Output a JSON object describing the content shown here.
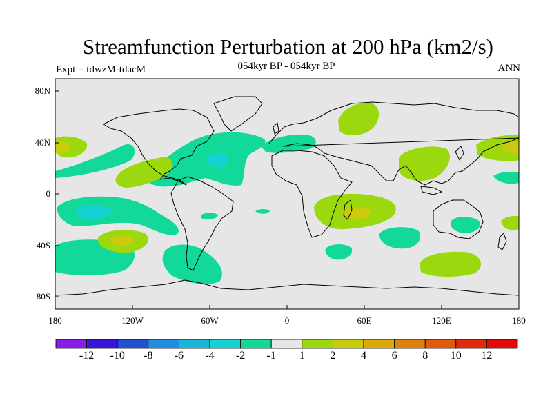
{
  "title": "Streamfunction Perturbation at 200 hPa (km2/s)",
  "experiment": "Expt = tdwzM-tdacM",
  "period": "054kyr BP - 054kyr BP",
  "season": "ANN",
  "lat_labels": [
    "80N",
    "40N",
    "0",
    "40S",
    "80S"
  ],
  "lon_labels": [
    "180",
    "120W",
    "60W",
    "0",
    "60E",
    "120E",
    "180"
  ],
  "colorbar": {
    "labels": [
      "-12",
      "-10",
      "-8",
      "-6",
      "-4",
      "-2",
      "-1",
      "1",
      "2",
      "4",
      "6",
      "8",
      "10",
      "12"
    ],
    "colors": [
      "#8B1CE8",
      "#3A14D8",
      "#1E50D0",
      "#1E8FE0",
      "#18B6DA",
      "#14D2D2",
      "#12D89A",
      "#E6E6E6",
      "#9BD80E",
      "#C8CC0A",
      "#DCA80A",
      "#E0820A",
      "#E05A0A",
      "#E02A0A",
      "#E00A0A"
    ]
  },
  "map": {
    "ocean_color": "#E6E6E6",
    "features": [
      {
        "name": "n-atlantic-low",
        "level": -2
      },
      {
        "name": "n-atlantic-core",
        "level": -4
      },
      {
        "name": "s-pacific-low",
        "level": -2
      },
      {
        "name": "s-pacific-core",
        "level": -4
      },
      {
        "name": "arctic-high",
        "level": 2
      },
      {
        "name": "s-indian-high",
        "level": 2
      },
      {
        "name": "s-indian-core",
        "level": 4
      },
      {
        "name": "s-pacific-high",
        "level": 2
      },
      {
        "name": "s-pacific-high-core",
        "level": 4
      },
      {
        "name": "w-pacific-high",
        "level": 2
      },
      {
        "name": "w-pacific-high-core",
        "level": 4
      },
      {
        "name": "e-pacific-high",
        "level": 2
      },
      {
        "name": "e-pacific-high-core",
        "level": 4
      }
    ]
  }
}
